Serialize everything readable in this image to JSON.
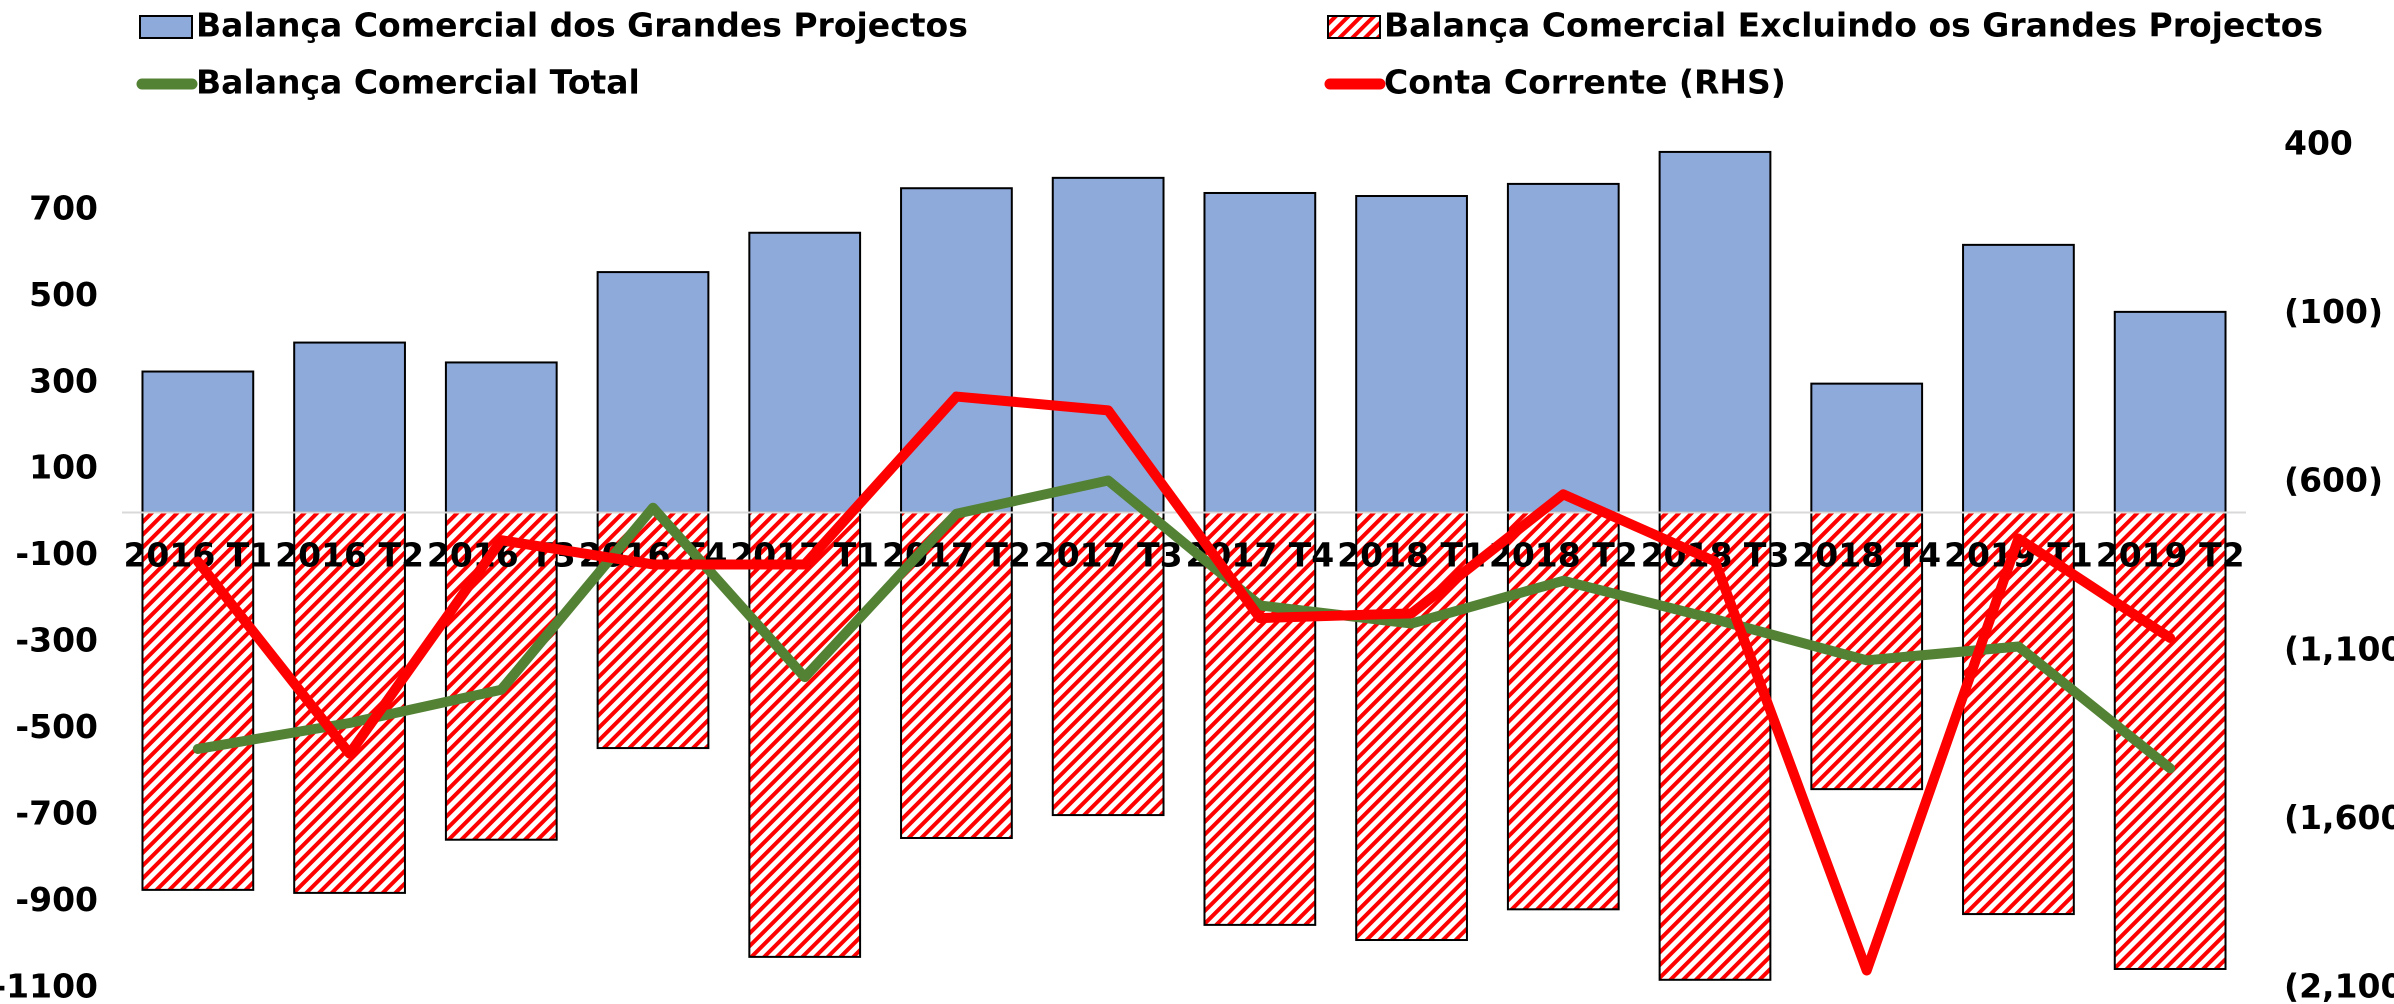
{
  "chart_data": {
    "type": "bar",
    "categories": [
      "2016 T1",
      "2016 T2",
      "2016 T3",
      "2016 T4",
      "2017 T1",
      "2017 T2",
      "2017 T3",
      "2017 T4",
      "2018 T1",
      "2018 T2",
      "2018 T3",
      "2018 T4",
      "2019 T1",
      "2019 T2"
    ],
    "series": [
      {
        "name": "Balança Comercial dos Grandes Projectos",
        "type": "bar",
        "pattern": "solid",
        "color": "#8eaadb",
        "values": [
          326,
          393,
          347,
          556,
          647,
          750,
          774,
          739,
          732,
          760,
          834,
          298,
          619,
          464
        ]
      },
      {
        "name": "Balança Comercial Excluindo os Grandes Projectos",
        "type": "bar",
        "pattern": "hatch",
        "color": "#ff0000",
        "values": [
          -873,
          -880,
          -757,
          -545,
          -1028,
          -753,
          -700,
          -954,
          -989,
          -918,
          -1081,
          -640,
          -929,
          -1056
        ]
      },
      {
        "name": "Balança Comercial Total",
        "type": "line",
        "color": "#548235",
        "values": [
          -547,
          -487,
          -410,
          11,
          -381,
          -3,
          74,
          -215,
          -257,
          -158,
          -247,
          -342,
          -310,
          -592
        ]
      },
      {
        "name": "Conta Corrente (RHS)",
        "type": "line",
        "axis": "y2",
        "color": "#ff0000",
        "values": [
          -835,
          -1405,
          -772,
          -844,
          -844,
          -346,
          -387,
          -1003,
          -989,
          -636,
          -835,
          -2048,
          -767,
          -1062
        ]
      }
    ],
    "ylim": [
      -1100,
      850
    ],
    "yticks": [
      700,
      500,
      300,
      100,
      -100,
      -300,
      -500,
      -700,
      -900,
      -1100
    ],
    "y2lim": [
      -2100,
      400
    ],
    "y2ticks": [
      400,
      {
        "value": -100,
        "label": "(100)"
      },
      {
        "value": -600,
        "label": "(600)"
      },
      {
        "value": -1100,
        "label": "(1,100)"
      },
      {
        "value": -1600,
        "label": "(1,600)"
      },
      {
        "value": -2100,
        "label": "(2,100)"
      }
    ],
    "grid": false,
    "legend": "top"
  }
}
